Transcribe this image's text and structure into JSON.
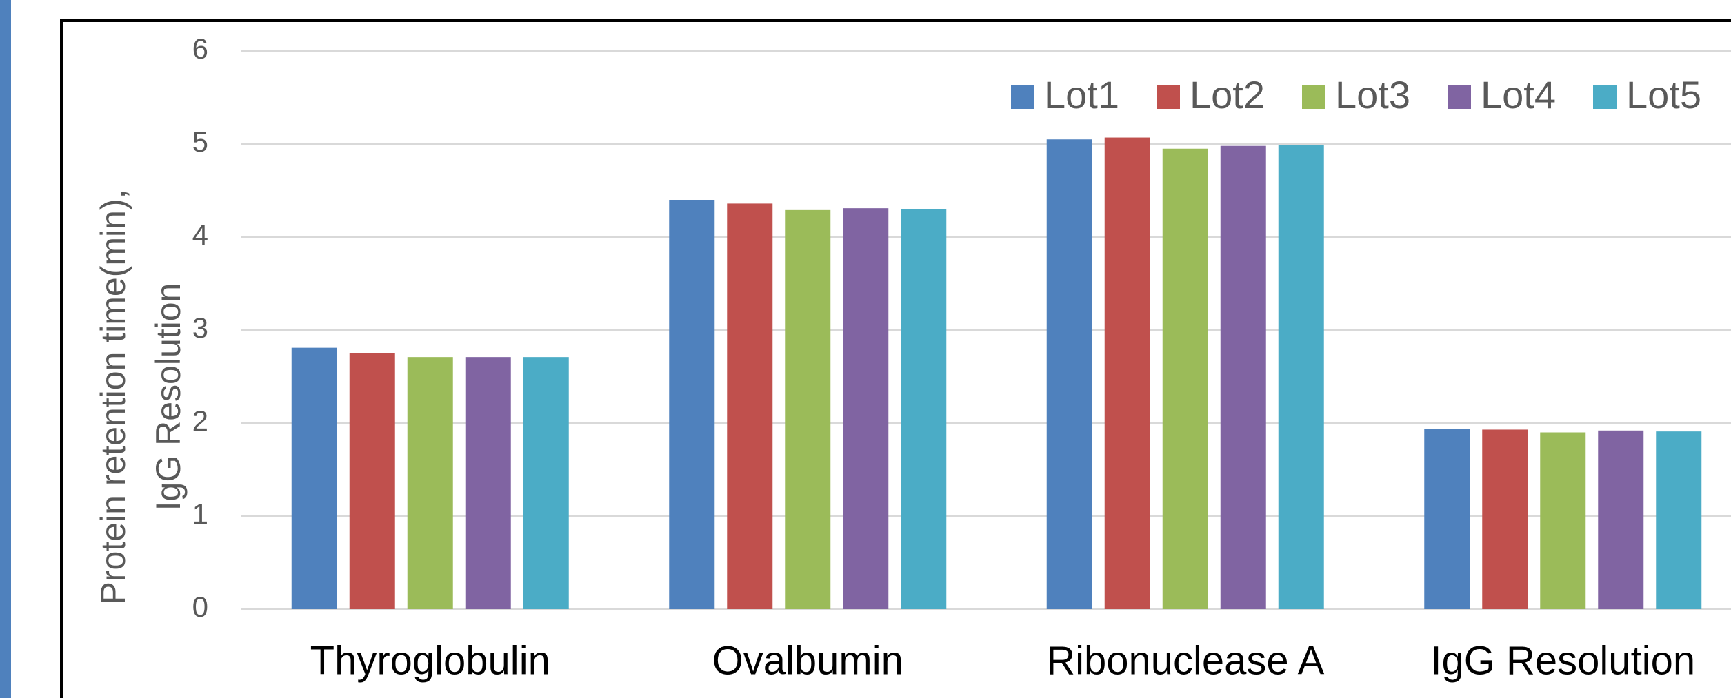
{
  "chart_data": {
    "type": "bar",
    "y_label": [
      "Protein retention time(min),",
      "IgG Resolution"
    ],
    "categories": [
      "Thyroglobulin",
      "Ovalbumin",
      "Ribonuclease A",
      "IgG Resolution"
    ],
    "series": [
      {
        "name": "Lot1",
        "color": "#4f81bd",
        "values": [
          2.81,
          4.4,
          5.05,
          1.94
        ]
      },
      {
        "name": "Lot2",
        "color": "#c0504d",
        "values": [
          2.75,
          4.36,
          5.07,
          1.93
        ]
      },
      {
        "name": "Lot3",
        "color": "#9bbb59",
        "values": [
          2.71,
          4.29,
          4.95,
          1.9
        ]
      },
      {
        "name": "Lot4",
        "color": "#8064a2",
        "values": [
          2.71,
          4.31,
          4.98,
          1.92
        ]
      },
      {
        "name": "Lot5",
        "color": "#4bacc6",
        "values": [
          2.71,
          4.3,
          4.99,
          1.91
        ]
      }
    ],
    "ylim": [
      0,
      6
    ],
    "yticks": [
      0,
      1,
      2,
      3,
      4,
      5,
      6
    ],
    "grid": true,
    "legend": "top-right"
  }
}
